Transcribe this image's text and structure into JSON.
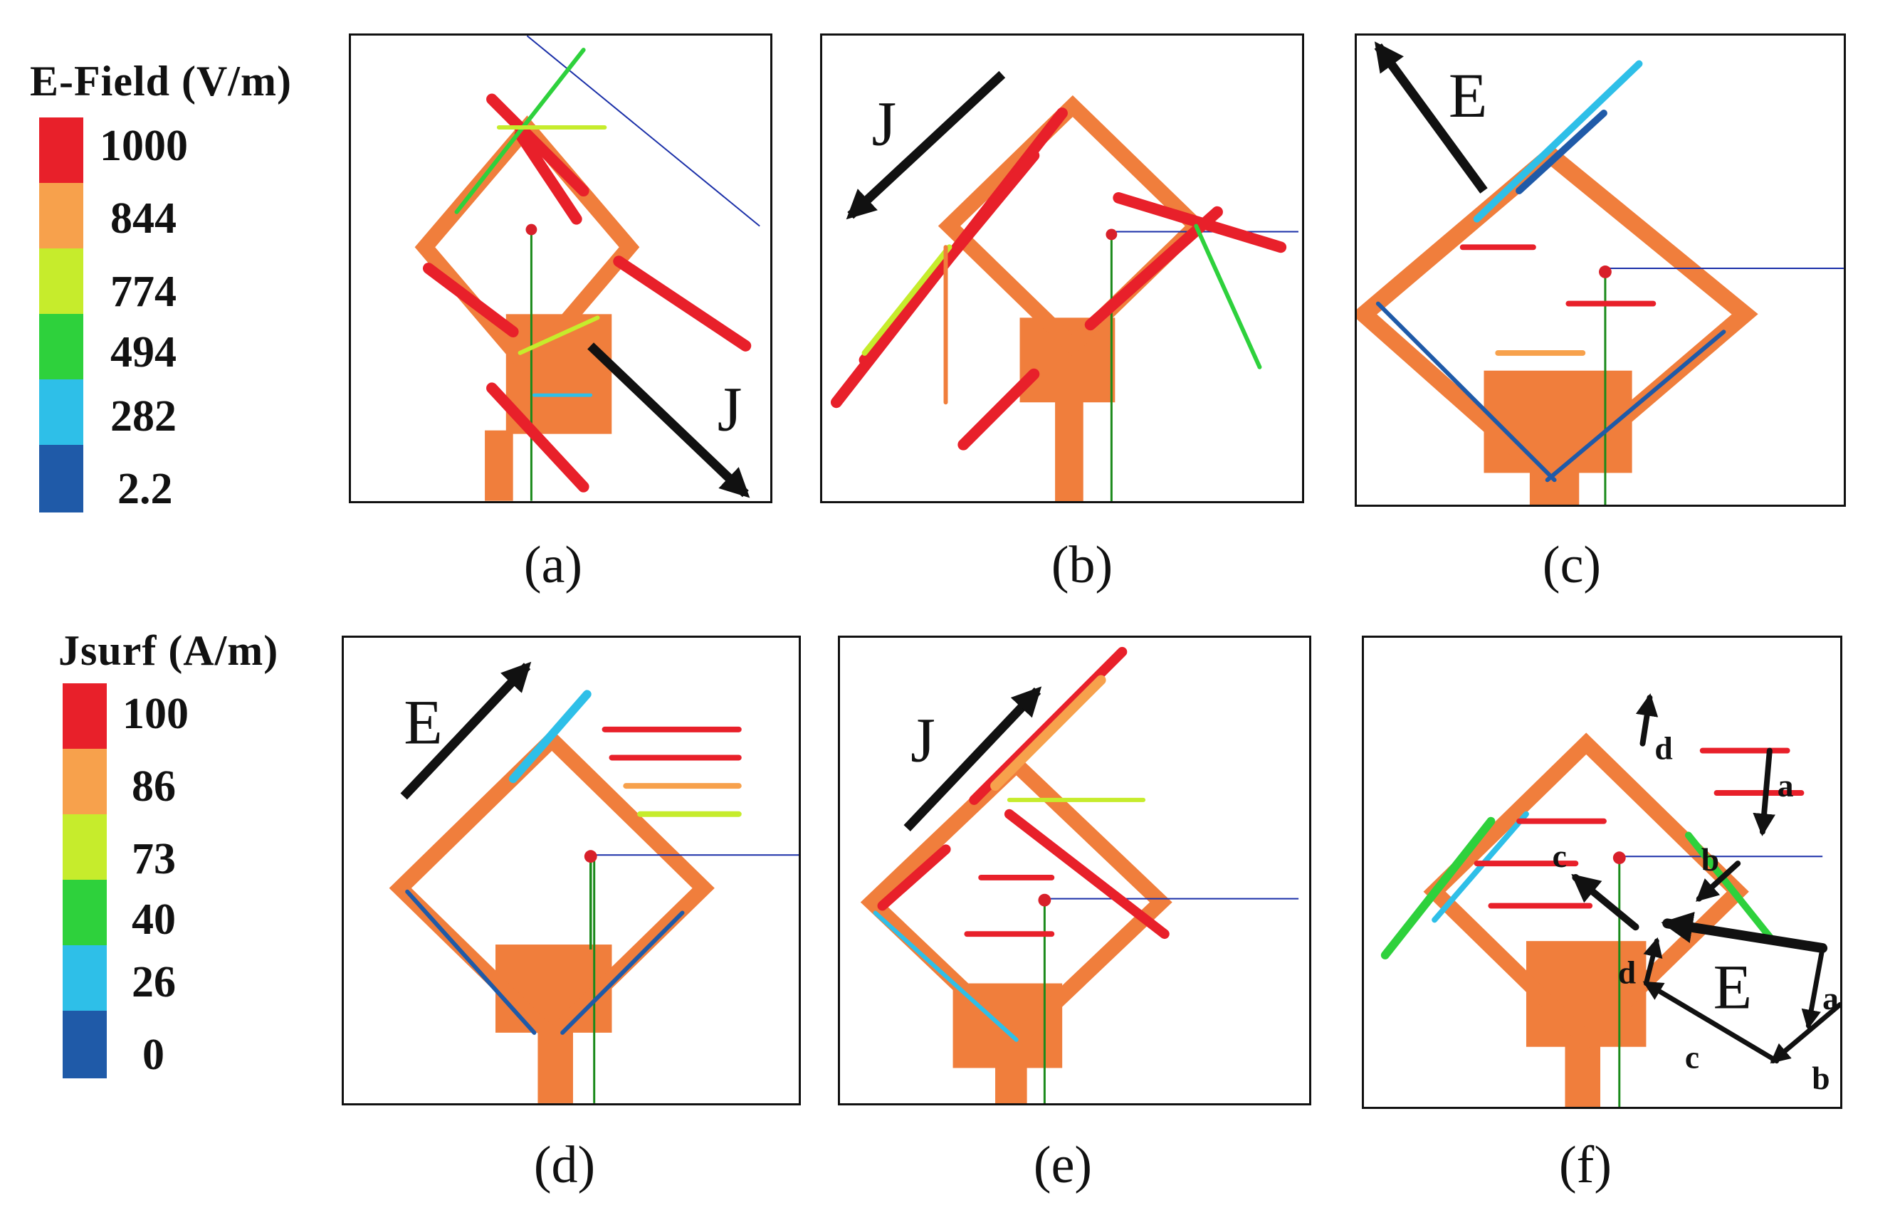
{
  "legends": {
    "efield": {
      "title": "E-Field (V/m)",
      "entries": [
        {
          "label": "1000",
          "color": "#e8202a"
        },
        {
          "label": "844",
          "color": "#f7a14c"
        },
        {
          "label": "774",
          "color": "#c6ec2c"
        },
        {
          "label": "494",
          "color": "#2ed13c"
        },
        {
          "label": "282",
          "color": "#2ebfe8"
        },
        {
          "label": "2.2",
          "color": "#1f5aa8"
        }
      ]
    },
    "jsurf": {
      "title": "Jsurf (A/m)",
      "entries": [
        {
          "label": "100",
          "color": "#e8202a"
        },
        {
          "label": "86",
          "color": "#f7a14c"
        },
        {
          "label": "73",
          "color": "#c6ec2c"
        },
        {
          "label": "40",
          "color": "#2ed13c"
        },
        {
          "label": "26",
          "color": "#2ebfe8"
        },
        {
          "label": "0",
          "color": "#1f5aa8"
        }
      ]
    }
  },
  "panels": {
    "a": {
      "caption": "(a)",
      "annotation": "J"
    },
    "b": {
      "caption": "(b)",
      "annotation": "J"
    },
    "c": {
      "caption": "(c)",
      "annotation": "E"
    },
    "d": {
      "caption": "(d)",
      "annotation": "E"
    },
    "e": {
      "caption": "(e)",
      "annotation": "J"
    },
    "f": {
      "caption": "(f)",
      "annotation": "E",
      "labels": [
        "a",
        "b",
        "c",
        "d"
      ]
    }
  },
  "colors": {
    "antenna": "#f07e3c",
    "feed_line": "#1a2fa8",
    "probe": "#1a8a1a"
  }
}
